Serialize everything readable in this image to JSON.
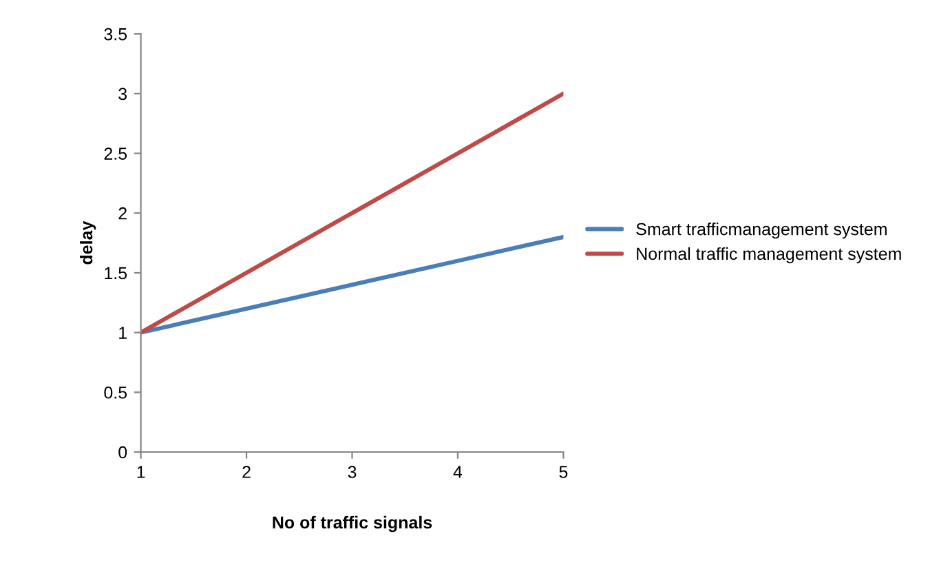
{
  "chart_data": {
    "type": "line",
    "xlabel": "No of traffic signals",
    "ylabel": "delay",
    "x": [
      1,
      2,
      3,
      4,
      5
    ],
    "series": [
      {
        "name": "Smart trafficmanagement system",
        "color": "#4a7ebb",
        "values": [
          1,
          1.2,
          1.4,
          1.6,
          1.8
        ]
      },
      {
        "name": "Normal traffic management system",
        "color": "#be4b48",
        "values": [
          1,
          1.5,
          2,
          2.5,
          3
        ]
      }
    ],
    "xlim": [
      1,
      5
    ],
    "xticks": [
      1,
      2,
      3,
      4,
      5
    ],
    "ylim": [
      0,
      3.5
    ],
    "yticks": [
      0,
      0.5,
      1,
      1.5,
      2,
      2.5,
      3,
      3.5
    ],
    "grid": false,
    "legend": "right",
    "marker": "none",
    "line_style": "solid"
  }
}
